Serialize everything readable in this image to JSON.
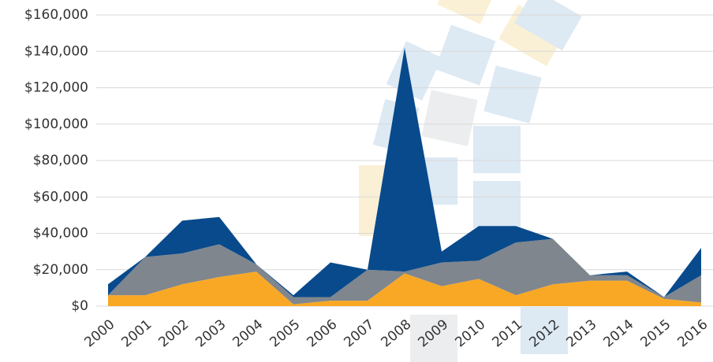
{
  "chart_data": {
    "type": "stacked-area",
    "categories": [
      "2000",
      "2001",
      "2002",
      "2003",
      "2004",
      "2005",
      "2006",
      "2007",
      "2008",
      "2009",
      "2010",
      "2011",
      "2012",
      "2013",
      "2014",
      "2015",
      "2016"
    ],
    "series": [
      {
        "color": "#f9a825",
        "values": [
          6000,
          6000,
          12000,
          16000,
          19000,
          1000,
          3000,
          3000,
          18000,
          11000,
          15000,
          6000,
          12000,
          14000,
          14000,
          4000,
          2000
        ]
      },
      {
        "color": "#7f868e",
        "values": [
          0,
          21000,
          17000,
          18000,
          4000,
          4000,
          2000,
          17000,
          1000,
          13000,
          10000,
          29000,
          25000,
          3000,
          3000,
          1000,
          15000
        ]
      },
      {
        "color": "#084a8c",
        "values": [
          6000,
          0,
          18000,
          15000,
          0,
          1000,
          19000,
          0,
          123000,
          6000,
          19000,
          9000,
          0,
          0,
          2000,
          0,
          15000
        ]
      }
    ],
    "ylim": [
      0,
      160000
    ],
    "yticks": [
      {
        "value": 0,
        "label": "$0"
      },
      {
        "value": 20000,
        "label": "$20,000"
      },
      {
        "value": 40000,
        "label": "$40,000"
      },
      {
        "value": 60000,
        "label": "$60,000"
      },
      {
        "value": 80000,
        "label": "$80,000"
      },
      {
        "value": 100000,
        "label": "$100,000"
      },
      {
        "value": 120000,
        "label": "$120,000"
      },
      {
        "value": 140000,
        "label": "$140,000"
      },
      {
        "value": 160000,
        "label": "$160,000"
      }
    ],
    "grid": true
  }
}
